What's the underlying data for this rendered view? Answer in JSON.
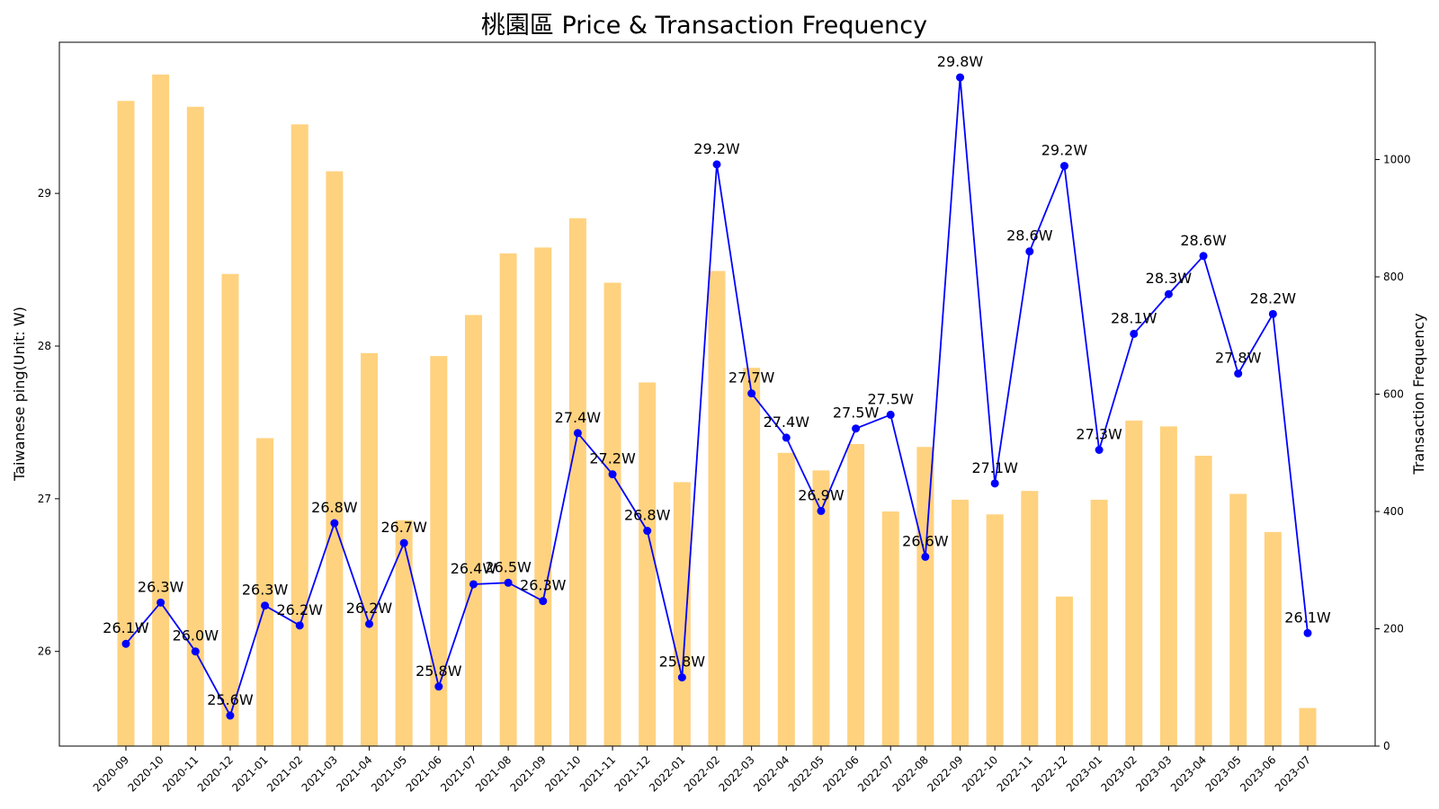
{
  "chart_data": {
    "type": "bar+line",
    "title": "桃園區 Price & Transaction Frequency",
    "ylabel_left": "Taiwanese ping(Unit: W)",
    "ylabel_right": "Transaction Frequency",
    "categories": [
      "2020-09",
      "2020-10",
      "2020-11",
      "2020-12",
      "2021-01",
      "2021-02",
      "2021-03",
      "2021-04",
      "2021-05",
      "2021-06",
      "2021-07",
      "2021-08",
      "2021-09",
      "2021-10",
      "2021-11",
      "2021-12",
      "2022-01",
      "2022-02",
      "2022-03",
      "2022-04",
      "2022-05",
      "2022-06",
      "2022-07",
      "2022-08",
      "2022-09",
      "2022-10",
      "2022-11",
      "2022-12",
      "2023-01",
      "2023-02",
      "2023-03",
      "2023-04",
      "2023-05",
      "2023-06",
      "2023-07"
    ],
    "price_series": {
      "axis": "left",
      "color": "#0000ff",
      "values": [
        26.05,
        26.32,
        26.0,
        25.58,
        26.3,
        26.17,
        26.84,
        26.18,
        26.71,
        25.77,
        26.44,
        26.45,
        26.33,
        27.43,
        27.16,
        26.79,
        25.83,
        29.19,
        27.69,
        27.4,
        26.92,
        27.46,
        27.55,
        26.62,
        29.76,
        27.1,
        28.62,
        29.18,
        27.32,
        28.08,
        28.34,
        28.59,
        27.82,
        28.21,
        26.12
      ],
      "labels": [
        "26.1W",
        "26.3W",
        "26.0W",
        "25.6W",
        "26.3W",
        "26.2W",
        "26.8W",
        "26.2W",
        "26.7W",
        "25.8W",
        "26.4W",
        "26.5W",
        "26.3W",
        "27.4W",
        "27.2W",
        "26.8W",
        "25.8W",
        "29.2W",
        "27.7W",
        "27.4W",
        "26.9W",
        "27.5W",
        "27.5W",
        "26.6W",
        "29.8W",
        "27.1W",
        "28.6W",
        "29.2W",
        "27.3W",
        "28.1W",
        "28.3W",
        "28.6W",
        "27.8W",
        "28.2W",
        "26.1W"
      ]
    },
    "frequency_series": {
      "axis": "right",
      "color": "#ffa500",
      "opacity": 0.5,
      "values": [
        1100,
        1145,
        1090,
        805,
        525,
        1060,
        980,
        670,
        385,
        665,
        735,
        840,
        850,
        900,
        790,
        620,
        450,
        810,
        645,
        500,
        470,
        515,
        400,
        510,
        420,
        395,
        435,
        255,
        420,
        555,
        545,
        495,
        430,
        365,
        65
      ]
    },
    "y_left": {
      "ylim": [
        25.38,
        29.99
      ],
      "ticks": [
        26,
        27,
        28,
        29
      ]
    },
    "y_right": {
      "ylim": [
        0,
        1200
      ],
      "ticks": [
        0,
        200,
        400,
        600,
        800,
        1000
      ]
    },
    "grid": false
  }
}
